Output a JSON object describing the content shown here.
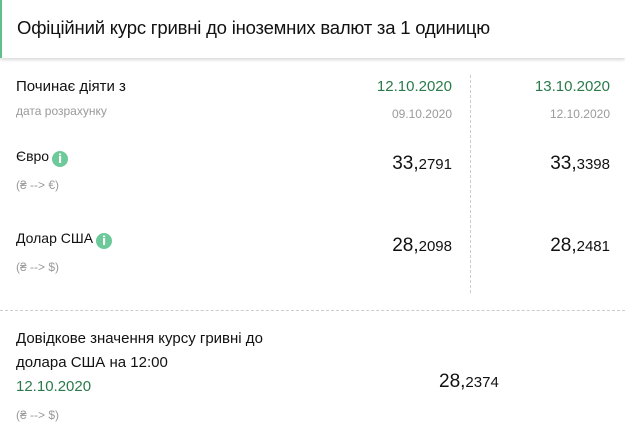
{
  "title": "Офіційний курс гривні до іноземних валют за 1 одиницю",
  "effective_label": "Починає діяти з",
  "calc_label": "дата розрахунку",
  "columns": [
    {
      "effective": "12.10.2020",
      "calc": "09.10.2020"
    },
    {
      "effective": "13.10.2020",
      "calc": "12.10.2020"
    }
  ],
  "rates": [
    {
      "name": "Євро",
      "pair": "(₴ --> €)",
      "values": [
        {
          "int": "33,",
          "dec": "2791"
        },
        {
          "int": "33,",
          "dec": "3398"
        }
      ]
    },
    {
      "name": "Долар США",
      "pair": "(₴ --> $)",
      "values": [
        {
          "int": "28,",
          "dec": "2098"
        },
        {
          "int": "28,",
          "dec": "2481"
        }
      ]
    }
  ],
  "reference": {
    "line1": "Довідкове значення курсу гривні до",
    "line2": "долара США на 12:00",
    "date": "12.10.2020",
    "pair": "(₴ --> $)",
    "value": {
      "int": "28,",
      "dec": "2374"
    }
  },
  "colors": {
    "accent": "#2a7a4a",
    "info": "#6cc99a"
  }
}
